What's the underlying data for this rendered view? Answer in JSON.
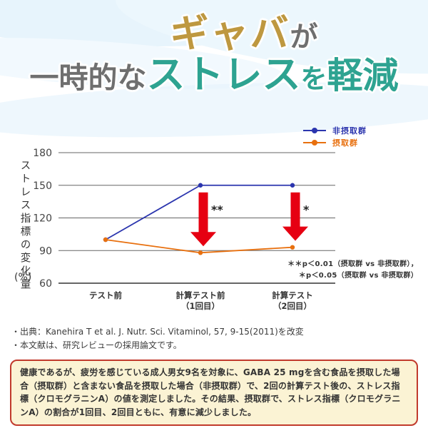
{
  "title": {
    "part_gold": "ギャバ",
    "part_gray_small": "が",
    "part_gray": "一時的な",
    "part_teal_big": "ストレス",
    "part_teal_small": "を",
    "part_teal_kanji": "軽減"
  },
  "colors": {
    "title_gold": "#be9840",
    "title_gray": "#6f6f6f",
    "title_teal": "#2ea391",
    "series_control_blue": "#2b35ae",
    "series_intake_orange": "#e8700f",
    "arrow_red": "#e60012",
    "box_border_red": "#c13a2c",
    "box_background_cream": "#fbf3d4",
    "wave_light_blue": "#e3f2fb"
  },
  "chart_data": {
    "type": "line",
    "title": "",
    "xlabel": "",
    "ylabel": "ストレス指標の変化量(%)",
    "ylabel_vertical": "ストレス指標の変化量",
    "ylabel_unit": "(%)",
    "ylim": [
      60,
      180
    ],
    "yticks": [
      180,
      150,
      120,
      90,
      60
    ],
    "grid": true,
    "legend_position": "top-right",
    "categories": [
      "テスト前",
      "計算テスト前\n（1回目）",
      "計算テスト\n（2回目）"
    ],
    "series": [
      {
        "name": "非摂取群",
        "color": "#2b35ae",
        "values": [
          100,
          150,
          150
        ]
      },
      {
        "name": "摂取群",
        "color": "#e8700f",
        "values": [
          100,
          88,
          93
        ]
      }
    ],
    "annotations": [
      {
        "category_index": 1,
        "label": "**",
        "type": "down-arrow"
      },
      {
        "category_index": 2,
        "label": "*",
        "type": "down-arrow"
      }
    ],
    "arrow_color": "#e60012",
    "notes": [
      "＊＊p＜0.01（摂取群 vs 非摂取群），",
      "＊p＜0.05（摂取群 vs 非摂取群）"
    ]
  },
  "citation": {
    "line1": "・出典：Kanehira T et al. J. Nutr. Sci. Vitaminol, 57, 9-15(2011)を改変",
    "line2": "・本文献は、研究レビューの採用論文です。"
  },
  "description_box": {
    "text": "健康であるが、疲労を感じている成人男女9名を対象に、GABA 25 mgを含む食品を摂取した場合（摂取群）と含まない食品を摂取した場合（非摂取群）で、2回の計算テスト後の、ストレス指標（クロモグラニンA）の値を測定しました。その結果、摂取群で、ストレス指標（クロモグラニンA）の割合が1回目、2回目ともに、有意に減少しました。"
  }
}
